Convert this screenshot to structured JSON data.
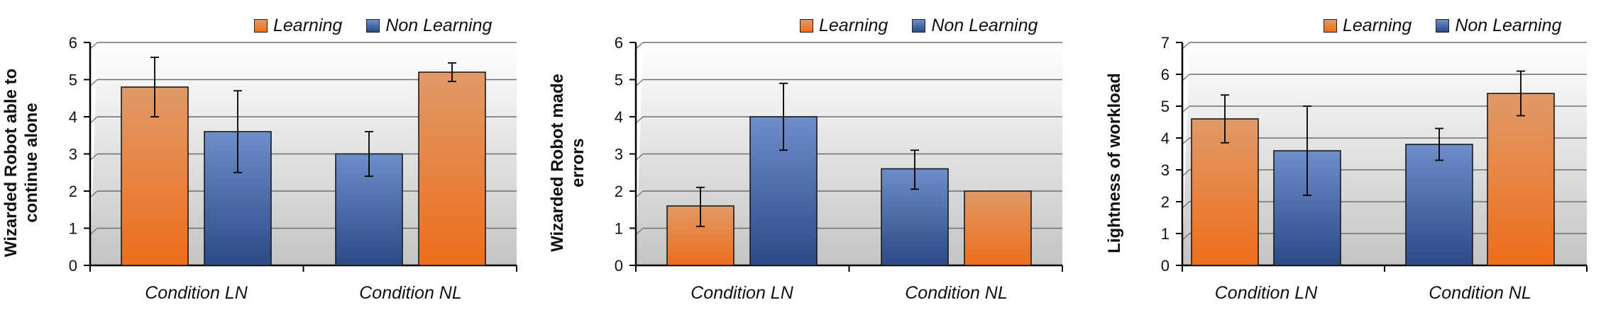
{
  "legend": {
    "learning": "Learning",
    "non_learning": "Non Learning"
  },
  "colors": {
    "learning_top": "#e09a68",
    "learning_bottom": "#ee6d1b",
    "non_learning_top": "#6d8ec9",
    "non_learning_bottom": "#2c4a85",
    "plot_top": "#ffffff",
    "plot_bottom": "#c4c4c4",
    "grid": "#6e6e6e"
  },
  "chart_data": [
    {
      "type": "bar",
      "ylabel_lines": [
        "Wizarded Robot able to",
        "continue alone"
      ],
      "categories": [
        "Condition LN",
        "Condition NL"
      ],
      "ylim": [
        0,
        6
      ],
      "yticks": [
        "0",
        "1",
        "2",
        "3",
        "4",
        "5",
        "6"
      ],
      "legend_position": "top-right",
      "grid": true,
      "bars": [
        {
          "category": "Condition LN",
          "series": "Learning",
          "value": 4.8,
          "err_low": 4.0,
          "err_high": 5.6
        },
        {
          "category": "Condition LN",
          "series": "Non Learning",
          "value": 3.6,
          "err_low": 2.5,
          "err_high": 4.7
        },
        {
          "category": "Condition NL",
          "series": "Non Learning",
          "value": 3.0,
          "err_low": 2.4,
          "err_high": 3.6
        },
        {
          "category": "Condition NL",
          "series": "Learning",
          "value": 5.2,
          "err_low": 4.95,
          "err_high": 5.45
        }
      ]
    },
    {
      "type": "bar",
      "ylabel_lines": [
        "Wizarded Robot made",
        "errors"
      ],
      "categories": [
        "Condition LN",
        "Condition NL"
      ],
      "ylim": [
        0,
        6
      ],
      "yticks": [
        "0",
        "1",
        "2",
        "3",
        "4",
        "5",
        "6"
      ],
      "legend_position": "top-right",
      "grid": true,
      "bars": [
        {
          "category": "Condition LN",
          "series": "Learning",
          "value": 1.6,
          "err_low": 1.05,
          "err_high": 2.1
        },
        {
          "category": "Condition LN",
          "series": "Non Learning",
          "value": 4.0,
          "err_low": 3.1,
          "err_high": 4.9
        },
        {
          "category": "Condition NL",
          "series": "Non Learning",
          "value": 2.6,
          "err_low": 2.05,
          "err_high": 3.1
        },
        {
          "category": "Condition NL",
          "series": "Learning",
          "value": 2.0,
          "err_low": null,
          "err_high": null
        }
      ]
    },
    {
      "type": "bar",
      "ylabel_lines": [
        "Lightness of workload"
      ],
      "categories": [
        "Condition LN",
        "Condition NL"
      ],
      "ylim": [
        0,
        7
      ],
      "yticks": [
        "0",
        "1",
        "2",
        "3",
        "4",
        "5",
        "6",
        "7"
      ],
      "legend_position": "top-right",
      "grid": true,
      "bars": [
        {
          "category": "Condition LN",
          "series": "Learning",
          "value": 4.6,
          "err_low": 3.85,
          "err_high": 5.35
        },
        {
          "category": "Condition LN",
          "series": "Non Learning",
          "value": 3.6,
          "err_low": 2.2,
          "err_high": 5.0
        },
        {
          "category": "Condition NL",
          "series": "Non Learning",
          "value": 3.8,
          "err_low": 3.3,
          "err_high": 4.3
        },
        {
          "category": "Condition NL",
          "series": "Learning",
          "value": 5.4,
          "err_low": 4.7,
          "err_high": 6.1
        }
      ]
    }
  ]
}
